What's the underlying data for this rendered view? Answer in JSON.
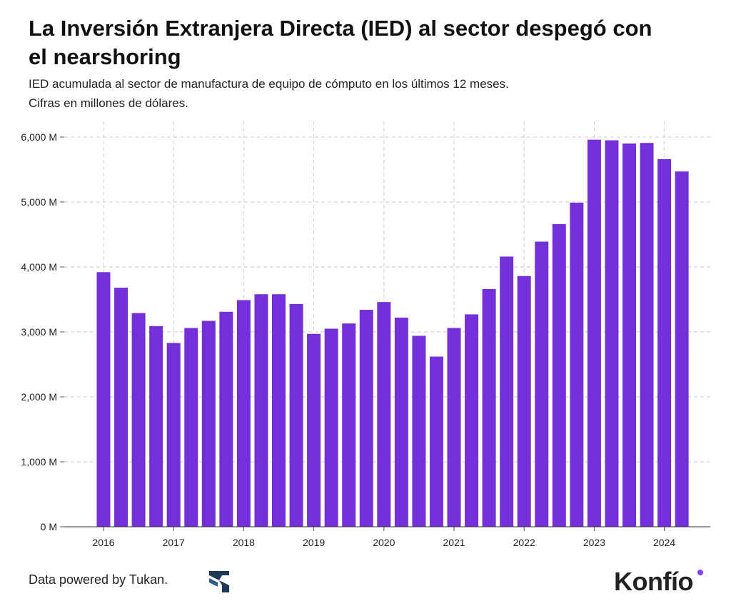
{
  "header": {
    "title": "La Inversión Extranjera Directa (IED) al sector despegó con el nearshoring",
    "subtitle_line1": "IED acumulada al sector de manufactura de equipo de cómputo en los últimos 12 meses.",
    "subtitle_line2": "Cifras en millones de dólares."
  },
  "chart_data": {
    "type": "bar",
    "title": "La Inversión Extranjera Directa (IED) al sector despegó con el nearshoring",
    "subtitle": "IED acumulada al sector de manufactura de equipo de cómputo en los últimos 12 meses. Cifras en millones de dólares.",
    "xlabel": "",
    "ylabel": "",
    "categories": [
      "2016 T1",
      "2016 T2",
      "2016 T3",
      "2016 T4",
      "2017 T1",
      "2017 T2",
      "2017 T3",
      "2017 T4",
      "2018 T1",
      "2018 T2",
      "2018 T3",
      "2018 T4",
      "2019 T1",
      "2019 T2",
      "2019 T3",
      "2019 T4",
      "2020 T1",
      "2020 T2",
      "2020 T3",
      "2020 T4",
      "2021 T1",
      "2021 T2",
      "2021 T3",
      "2021 T4",
      "2022 T1",
      "2022 T2",
      "2022 T3",
      "2022 T4",
      "2023 T1",
      "2023 T2",
      "2023 T3",
      "2023 T4",
      "2024 T1",
      "2024 T2"
    ],
    "values": [
      3920,
      3680,
      3290,
      3090,
      2830,
      3060,
      3170,
      3310,
      3490,
      3580,
      3580,
      3430,
      2970,
      3050,
      3130,
      3340,
      3460,
      3220,
      2940,
      2620,
      3060,
      3270,
      3660,
      4160,
      3860,
      4390,
      4660,
      4990,
      5960,
      5950,
      5900,
      5910,
      5660,
      5470
    ],
    "x_tick_labels": [
      "2016",
      "2017",
      "2018",
      "2019",
      "2020",
      "2021",
      "2022",
      "2023",
      "2024"
    ],
    "y_ticks": [
      0,
      1000,
      2000,
      3000,
      4000,
      5000,
      6000
    ],
    "y_tick_labels": [
      "0 M",
      "1,000 M",
      "2,000 M",
      "3,000 M",
      "4,000 M",
      "5,000 M",
      "6,000 M"
    ],
    "ylim": [
      0,
      6400
    ],
    "grid": true,
    "legend": "none",
    "bar_color": "#7330d9"
  },
  "footer": {
    "credit": "Data powered by Tukan.",
    "logo_icon": "tukan-logo-icon",
    "brand": "Konfío",
    "brand_dot_color": "#8b3cf0"
  }
}
